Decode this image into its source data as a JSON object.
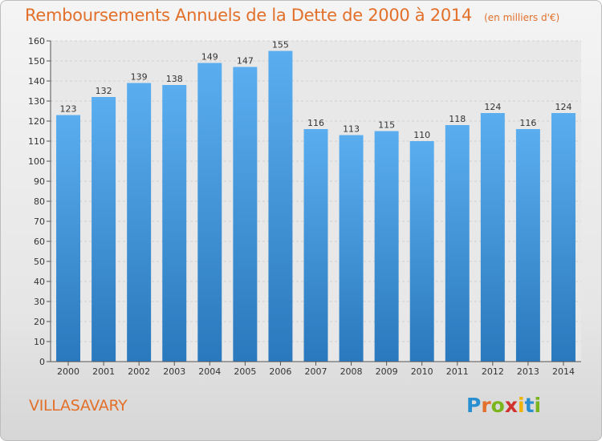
{
  "header": {
    "title": "Remboursements Annuels de la Dette de 2000 à 2014",
    "unit": "(en milliers d'€)"
  },
  "footer": {
    "commune": "VILLASAVARY",
    "logo_letters": [
      "P",
      "r",
      "o",
      "x",
      "i",
      "t",
      "i"
    ],
    "logo_colors": [
      "#2a8fd0",
      "#e2702a",
      "#7ab51d",
      "#d0312d",
      "#f0b400",
      "#2a8fd0",
      "#7ab51d"
    ]
  },
  "chart_data": {
    "type": "bar",
    "title": "Remboursements Annuels de la Dette de 2000 à 2014",
    "xlabel": "",
    "ylabel": "",
    "categories": [
      "2000",
      "2001",
      "2002",
      "2003",
      "2004",
      "2005",
      "2006",
      "2007",
      "2008",
      "2009",
      "2010",
      "2011",
      "2012",
      "2013",
      "2014"
    ],
    "values": [
      123,
      132,
      139,
      138,
      149,
      147,
      155,
      116,
      113,
      115,
      110,
      118,
      124,
      116,
      124
    ],
    "ylim": [
      0,
      160
    ],
    "yticks": [
      0,
      10,
      20,
      30,
      40,
      50,
      60,
      70,
      80,
      90,
      100,
      110,
      120,
      130,
      140,
      150,
      160
    ],
    "grid": true,
    "bar_color_top": "#5aaef0",
    "bar_color_bottom": "#2a78bd"
  }
}
